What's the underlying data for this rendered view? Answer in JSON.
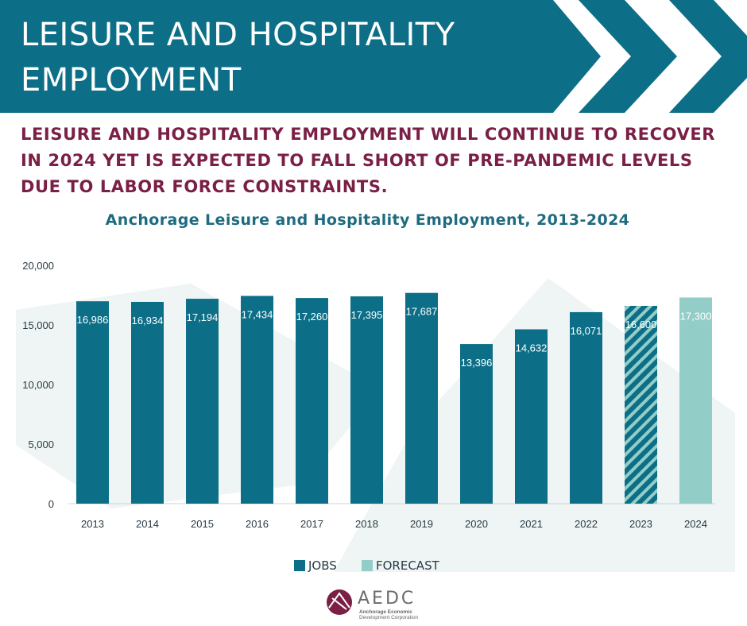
{
  "header": {
    "title": "LEISURE AND HOSPITALITY EMPLOYMENT",
    "subtitle": "LEISURE AND HOSPITALITY EMPLOYMENT WILL CONTINUE TO RECOVER IN 2024 YET IS EXPECTED TO FALL SHORT OF PRE-PANDEMIC LEVELS DUE TO LABOR FORCE CONSTRAINTS."
  },
  "colors": {
    "banner": "#0c6f87",
    "jobs": "#0c6f87",
    "forecast": "#93cdc8",
    "subtitle": "#7a1f45",
    "chart_title": "#1e6b80"
  },
  "chart_data": {
    "type": "bar",
    "title": "Anchorage Leisure and Hospitality Employment, 2013-2024",
    "categories": [
      "2013",
      "2014",
      "2015",
      "2016",
      "2017",
      "2018",
      "2019",
      "2020",
      "2021",
      "2022",
      "2023",
      "2024"
    ],
    "values": [
      16986,
      16934,
      17194,
      17434,
      17260,
      17395,
      17687,
      13396,
      14632,
      16071,
      16600,
      17300
    ],
    "value_labels": [
      "16,986",
      "16,934",
      "17,194",
      "17,434",
      "17,260",
      "17,395",
      "17,687",
      "13,396",
      "14,632",
      "16,071",
      "16,600",
      "17,300"
    ],
    "bar_styles": [
      "jobs",
      "jobs",
      "jobs",
      "jobs",
      "jobs",
      "jobs",
      "jobs",
      "jobs",
      "jobs",
      "jobs",
      "forecast-hatched",
      "forecast"
    ],
    "yticks": [
      0,
      5000,
      10000,
      15000,
      20000
    ],
    "ytick_labels": [
      "0",
      "5,000",
      "10,000",
      "15,000",
      "20,000"
    ],
    "ylim": [
      0,
      20000
    ],
    "grid": false,
    "legend_position": "bottom-center",
    "legend": [
      {
        "name": "JOBS",
        "color": "#0c6f87"
      },
      {
        "name": "FORECAST",
        "color": "#93cdc8"
      }
    ]
  },
  "logo": {
    "name": "AEDC",
    "line1": "Anchorage Economic",
    "line2": "Development Corporation",
    "icon": "aedc-logo-icon"
  }
}
